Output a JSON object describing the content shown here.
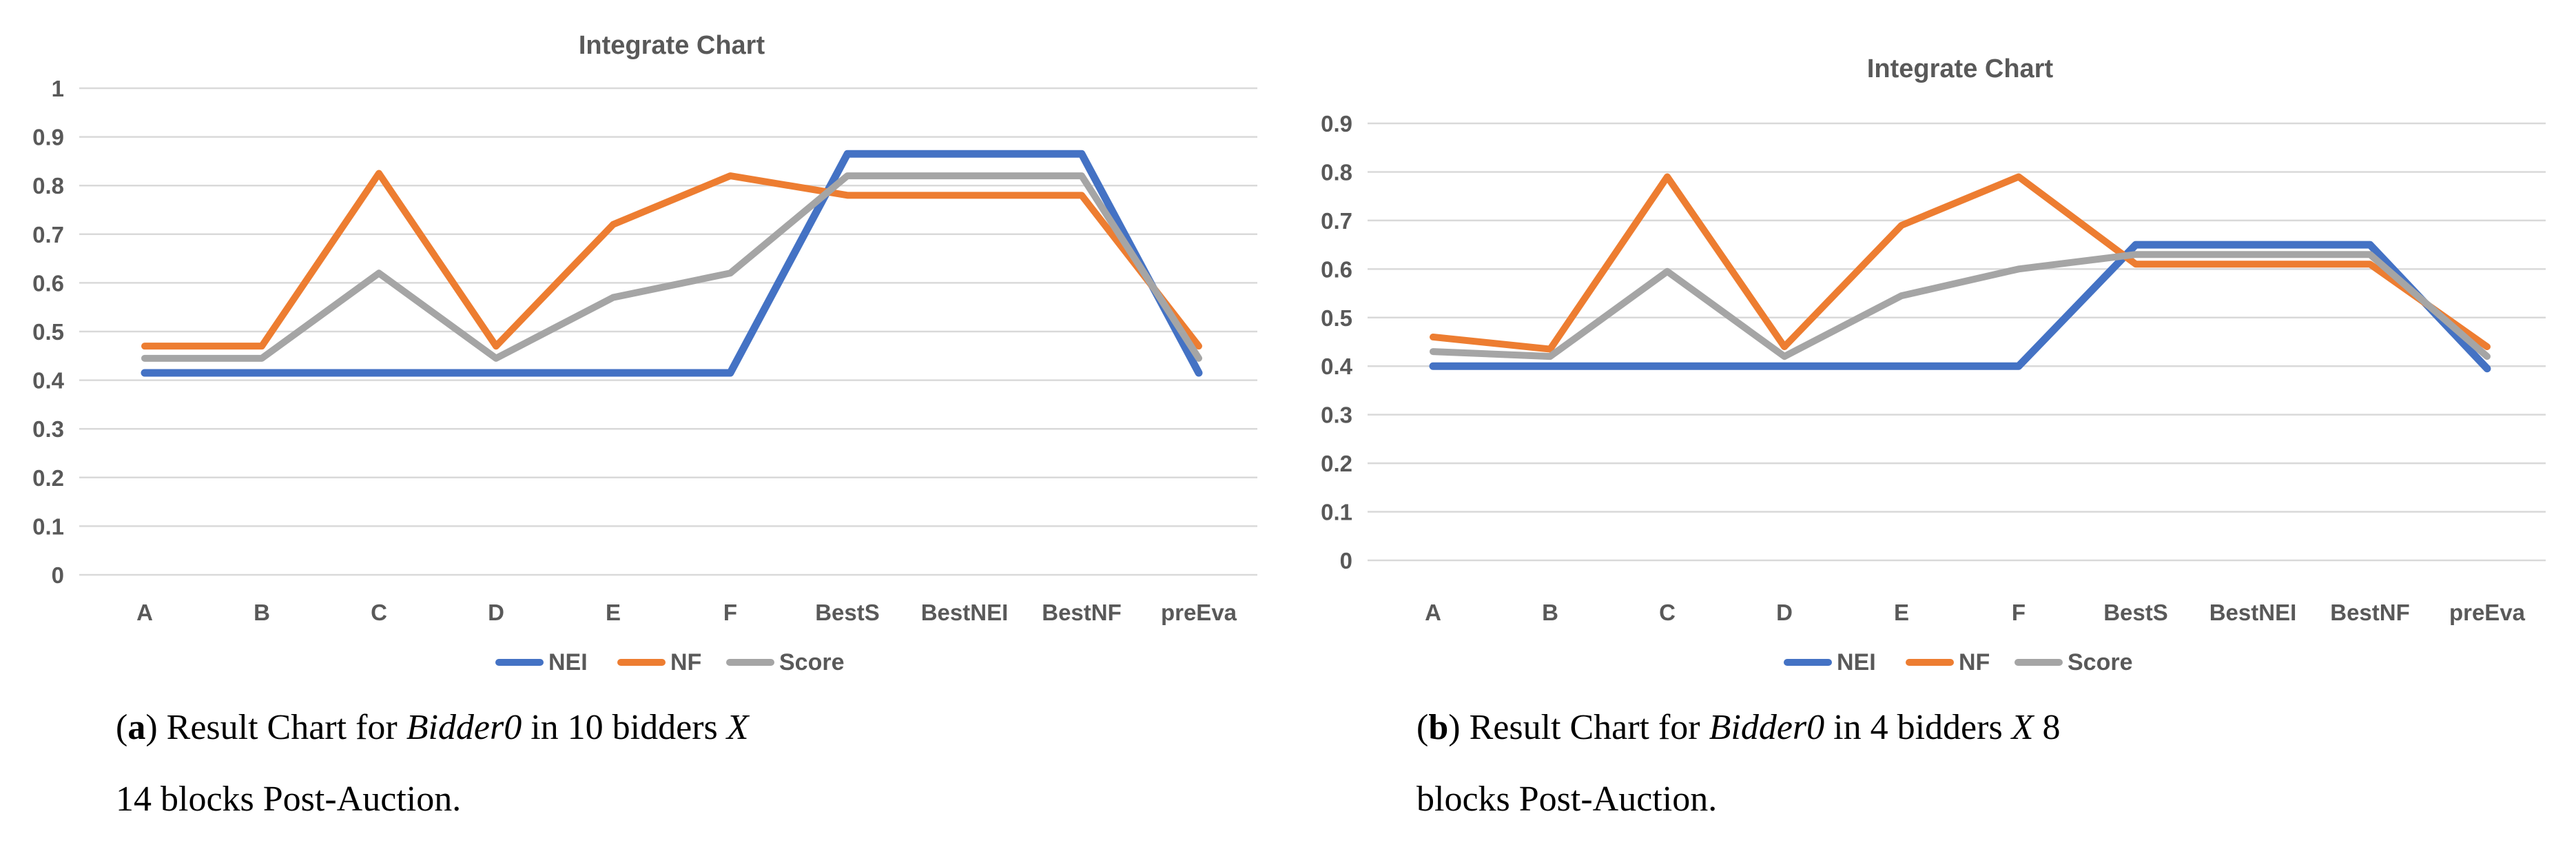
{
  "page": {
    "background": "#ffffff"
  },
  "colors": {
    "grid": "#D9D9D9",
    "axis_text": "#595959",
    "title_text": "#595959",
    "caption_text": "#000000",
    "nei_blue": "#4472C4",
    "nf_orange": "#ED7D31",
    "score_gray": "#A5A5A5"
  },
  "figures": [
    {
      "label": "a",
      "chart_data": {
        "type": "line",
        "title": "Integrate Chart",
        "categories": [
          "A",
          "B",
          "C",
          "D",
          "E",
          "F",
          "BestS",
          "BestNEI",
          "BestNF",
          "preEva"
        ],
        "series": [
          {
            "name": "NEI",
            "color": "#4472C4",
            "values": [
              0.415,
              0.415,
              0.415,
              0.415,
              0.415,
              0.415,
              0.865,
              0.865,
              0.865,
              0.415
            ]
          },
          {
            "name": "NF",
            "color": "#ED7D31",
            "values": [
              0.47,
              0.47,
              0.825,
              0.47,
              0.72,
              0.82,
              0.78,
              0.78,
              0.78,
              0.47
            ]
          },
          {
            "name": "Score",
            "color": "#A5A5A5",
            "values": [
              0.445,
              0.445,
              0.62,
              0.445,
              0.57,
              0.62,
              0.82,
              0.82,
              0.82,
              0.445
            ]
          }
        ],
        "ylim": [
          0,
          1
        ],
        "yticks": [
          {
            "v": 0,
            "label": "0"
          },
          {
            "v": 0.1,
            "label": "0.1"
          },
          {
            "v": 0.2,
            "label": "0.2"
          },
          {
            "v": 0.3,
            "label": "0.3"
          },
          {
            "v": 0.4,
            "label": "0.4"
          },
          {
            "v": 0.5,
            "label": "0.5"
          },
          {
            "v": 0.6,
            "label": "0.6"
          },
          {
            "v": 0.7,
            "label": "0.7"
          },
          {
            "v": 0.8,
            "label": "0.8"
          },
          {
            "v": 0.9,
            "label": "0.9"
          },
          {
            "v": 1,
            "label": "1"
          }
        ],
        "grid": true,
        "legend_position": "bottom",
        "legend": [
          "NEI",
          "NF",
          "Score"
        ]
      },
      "caption": {
        "lines": [
          [
            {
              "text": "("
            },
            {
              "text": "a",
              "bold": true
            },
            {
              "text": ") Result Chart for "
            },
            {
              "text": "Bidder0",
              "italic": true
            },
            {
              "text": " in 10 bidders "
            },
            {
              "text": "X",
              "italic": true
            }
          ],
          [
            {
              "text": "14 blocks Post-Auction."
            }
          ]
        ]
      }
    },
    {
      "label": "b",
      "chart_data": {
        "type": "line",
        "title": "Integrate Chart",
        "categories": [
          "A",
          "B",
          "C",
          "D",
          "E",
          "F",
          "BestS",
          "BestNEI",
          "BestNF",
          "preEva"
        ],
        "series": [
          {
            "name": "NEI",
            "color": "#4472C4",
            "values": [
              0.4,
              0.4,
              0.4,
              0.4,
              0.4,
              0.4,
              0.65,
              0.65,
              0.65,
              0.395
            ]
          },
          {
            "name": "NF",
            "color": "#ED7D31",
            "values": [
              0.46,
              0.435,
              0.79,
              0.44,
              0.69,
              0.79,
              0.61,
              0.61,
              0.61,
              0.44
            ]
          },
          {
            "name": "Score",
            "color": "#A5A5A5",
            "values": [
              0.43,
              0.42,
              0.595,
              0.42,
              0.545,
              0.6,
              0.63,
              0.63,
              0.63,
              0.42
            ]
          }
        ],
        "ylim": [
          0,
          0.9
        ],
        "yticks": [
          {
            "v": 0,
            "label": "0"
          },
          {
            "v": 0.1,
            "label": "0.1"
          },
          {
            "v": 0.2,
            "label": "0.2"
          },
          {
            "v": 0.3,
            "label": "0.3"
          },
          {
            "v": 0.4,
            "label": "0.4"
          },
          {
            "v": 0.5,
            "label": "0.5"
          },
          {
            "v": 0.6,
            "label": "0.6"
          },
          {
            "v": 0.7,
            "label": "0.7"
          },
          {
            "v": 0.8,
            "label": "0.8"
          },
          {
            "v": 0.9,
            "label": "0.9"
          }
        ],
        "grid": true,
        "legend_position": "bottom",
        "legend": [
          "NEI",
          "NF",
          "Score"
        ]
      },
      "caption": {
        "lines": [
          [
            {
              "text": "("
            },
            {
              "text": "b",
              "bold": true
            },
            {
              "text": ") Result Chart for "
            },
            {
              "text": "Bidder0",
              "italic": true
            },
            {
              "text": " in 4 bidders "
            },
            {
              "text": "X",
              "italic": true
            },
            {
              "text": " 8"
            }
          ],
          [
            {
              "text": "blocks Post-Auction."
            }
          ]
        ]
      }
    }
  ]
}
